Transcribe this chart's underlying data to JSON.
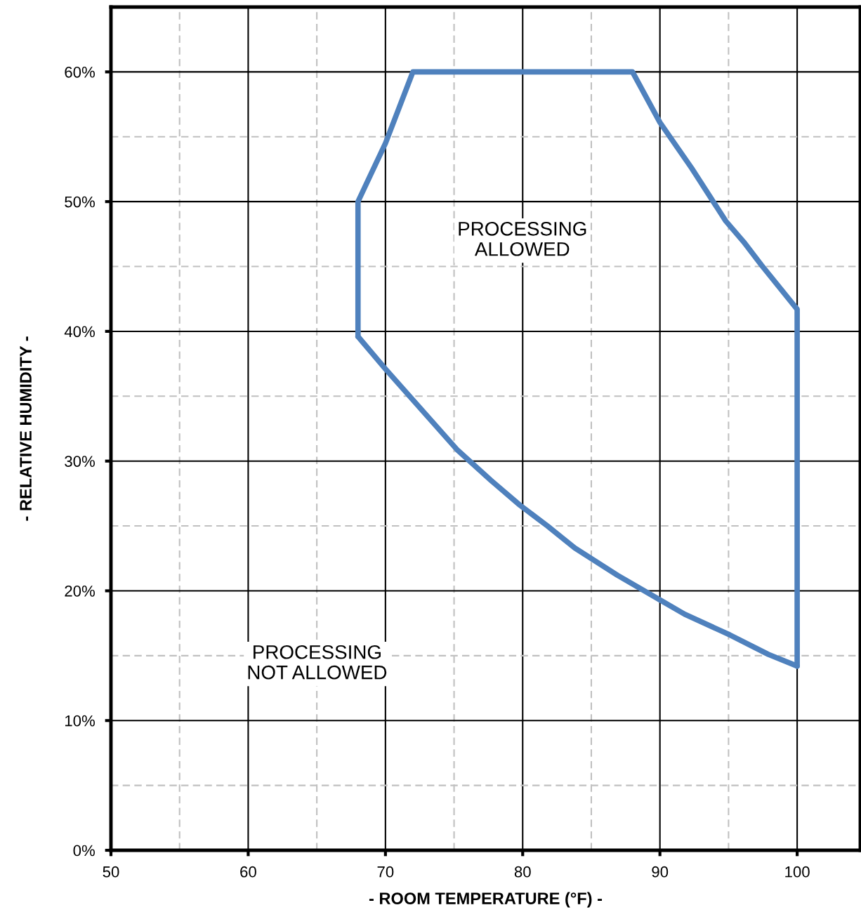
{
  "chart_data": {
    "type": "line",
    "xlabel": "- ROOM TEMPERATURE (°F) -",
    "ylabel": "- RELATIVE HUMIDITY -",
    "series": [
      {
        "color": "#4f81bd",
        "x": [
          68,
          68,
          70,
          72,
          88,
          90,
          92.3,
          94.8,
          96.1,
          97.4,
          100,
          100
        ],
        "values": [
          39.6,
          50,
          54.5,
          60,
          60,
          56.1,
          52.6,
          48.5,
          46.9,
          45.1,
          41.7,
          14.2
        ]
      },
      {
        "color": "#4f81bd",
        "x": [
          68,
          70,
          72.1,
          75.2,
          77.7,
          79.8,
          81.8,
          83.8,
          86.9,
          90,
          91.8,
          95.1,
          97.9,
          100
        ],
        "values": [
          39.6,
          37.1,
          34.6,
          30.9,
          28.5,
          26.6,
          25,
          23.3,
          21.2,
          19.3,
          18.2,
          16.6,
          15.1,
          14.2
        ]
      }
    ],
    "xlim": [
      50,
      104.6
    ],
    "ylim": [
      0,
      65
    ],
    "xticks": [
      50,
      {
        "value": 55,
        "label": null
      },
      60,
      {
        "value": 65,
        "label": null
      },
      70,
      {
        "value": 75,
        "label": null
      },
      80,
      {
        "value": 85,
        "label": null
      },
      90,
      {
        "value": 95,
        "label": null
      },
      100
    ],
    "yticks": [
      {
        "value": 0,
        "label": "0%"
      },
      {
        "value": 5,
        "label": null
      },
      {
        "value": 10,
        "label": "10%"
      },
      {
        "value": 15,
        "label": null
      },
      {
        "value": 20,
        "label": "20%"
      },
      {
        "value": 25,
        "label": null
      },
      {
        "value": 30,
        "label": "30%"
      },
      {
        "value": 35,
        "label": null
      },
      {
        "value": 40,
        "label": "40%"
      },
      {
        "value": 45,
        "label": null
      },
      {
        "value": 50,
        "label": "50%"
      },
      {
        "value": 55,
        "label": null
      },
      {
        "value": 60,
        "label": "60%"
      }
    ],
    "grid": true,
    "marker": "none",
    "line_style": "solid",
    "legend": false,
    "annotations": [
      "PROCESSING\nALLOWED",
      "PROCESSING\nNOT ALLOWED"
    ]
  }
}
